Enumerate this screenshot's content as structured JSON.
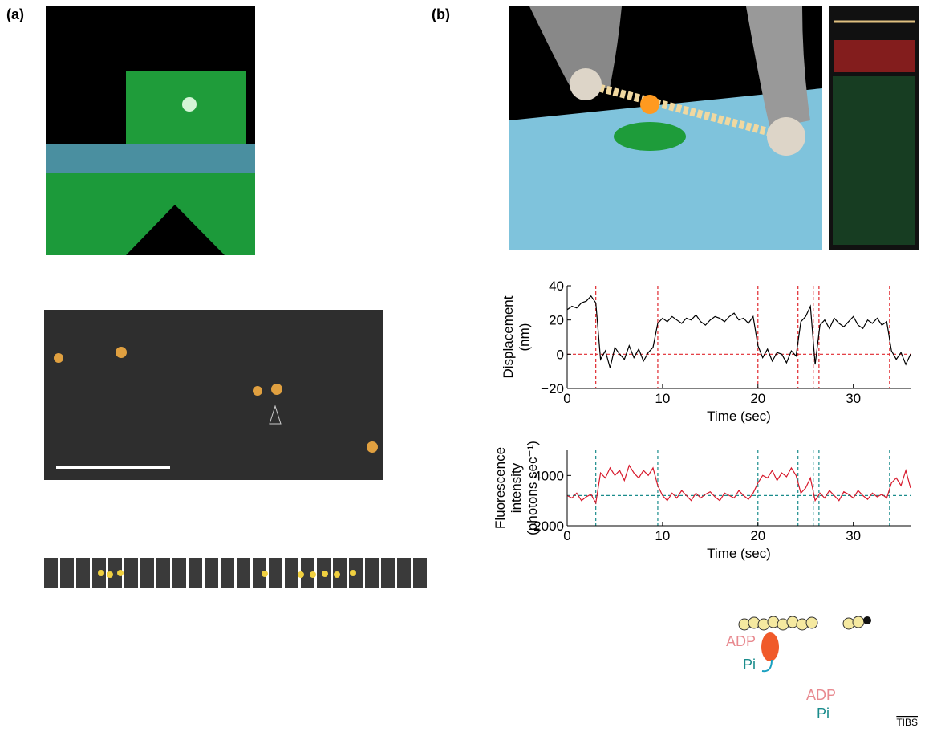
{
  "panel_labels": [
    "(a)",
    "(b)"
  ],
  "chart_data": [
    {
      "type": "line",
      "ylabel": [
        "Displacement",
        "(nm)"
      ],
      "xlabel": "Time (sec)",
      "x": [
        0,
        0.5,
        1,
        1.5,
        2,
        2.5,
        3,
        3.5,
        4,
        4.5,
        5,
        5.5,
        6,
        6.5,
        7,
        7.5,
        8,
        8.5,
        9,
        9.5,
        10,
        10.5,
        11,
        11.5,
        12,
        12.5,
        13,
        13.5,
        14,
        14.5,
        15,
        15.5,
        16,
        16.5,
        17,
        17.5,
        18,
        18.5,
        19,
        19.5,
        20,
        20.5,
        21,
        21.5,
        22,
        22.5,
        23,
        23.5,
        24,
        24.5,
        25,
        25.5,
        26,
        26.5,
        27,
        27.5,
        28,
        28.5,
        29,
        29.5,
        30,
        30.5,
        31,
        31.5,
        32,
        32.5,
        33,
        33.5,
        34,
        34.5,
        35,
        35.5,
        36
      ],
      "series": [
        {
          "color": "#000000",
          "values": [
            26,
            28,
            27,
            30,
            31,
            34,
            30,
            -3,
            2,
            -8,
            4,
            0,
            -3,
            5,
            -2,
            3,
            -4,
            1,
            4,
            18,
            21,
            19,
            22,
            20,
            18,
            21,
            20,
            23,
            19,
            17,
            20,
            22,
            21,
            19,
            22,
            24,
            20,
            21,
            18,
            22,
            5,
            -2,
            3,
            -4,
            1,
            0,
            -5,
            2,
            -1,
            19,
            22,
            28,
            -6,
            17,
            20,
            15,
            21,
            18,
            16,
            19,
            22,
            17,
            15,
            20,
            18,
            21,
            17,
            19,
            2,
            -3,
            1,
            -6,
            0
          ]
        }
      ],
      "xlim": [
        0,
        36
      ],
      "ylim": [
        -20,
        40
      ],
      "xticks": [
        0,
        10,
        20,
        30
      ],
      "yticks": [
        {
          "value": -20,
          "label": "−20"
        },
        0,
        20,
        40
      ],
      "vlines": [
        3,
        9.5,
        20,
        24.2,
        25.8,
        26.4,
        33.8
      ],
      "hline": 0,
      "guide_color": "#e0282e"
    },
    {
      "type": "line",
      "ylabel": [
        "Fluorescence",
        "intensity",
        "(photons sec⁻¹)"
      ],
      "xlabel": "Time (sec)",
      "x": [
        0,
        0.5,
        1,
        1.5,
        2,
        2.5,
        3,
        3.5,
        4,
        4.5,
        5,
        5.5,
        6,
        6.5,
        7,
        7.5,
        8,
        8.5,
        9,
        9.5,
        10,
        10.5,
        11,
        11.5,
        12,
        12.5,
        13,
        13.5,
        14,
        14.5,
        15,
        15.5,
        16,
        16.5,
        17,
        17.5,
        18,
        18.5,
        19,
        19.5,
        20,
        20.5,
        21,
        21.5,
        22,
        22.5,
        23,
        23.5,
        24,
        24.5,
        25,
        25.5,
        26,
        26.5,
        27,
        27.5,
        28,
        28.5,
        29,
        29.5,
        30,
        30.5,
        31,
        31.5,
        32,
        32.5,
        33,
        33.5,
        34,
        34.5,
        35,
        35.5,
        36
      ],
      "series": [
        {
          "color": "#d7192c",
          "values": [
            3200,
            3100,
            3300,
            3000,
            3150,
            3250,
            2900,
            4100,
            3900,
            4300,
            4000,
            4200,
            3800,
            4400,
            4100,
            3900,
            4200,
            4000,
            4300,
            3600,
            3200,
            3000,
            3300,
            3100,
            3400,
            3200,
            3000,
            3300,
            3100,
            3250,
            3350,
            3150,
            3000,
            3300,
            3200,
            3100,
            3400,
            3200,
            3050,
            3300,
            3700,
            4000,
            3900,
            4200,
            3800,
            4100,
            3950,
            4300,
            4000,
            3300,
            3500,
            3900,
            3000,
            3300,
            3100,
            3400,
            3200,
            3000,
            3350,
            3250,
            3100,
            3400,
            3200,
            3050,
            3300,
            3150,
            3250,
            3100,
            3700,
            3900,
            3600,
            4200,
            3500
          ]
        }
      ],
      "xlim": [
        0,
        36
      ],
      "ylim": [
        2000,
        5000
      ],
      "xticks": [
        0,
        10,
        20,
        30
      ],
      "yticks": [
        2000,
        4000
      ],
      "vlines": [
        3,
        9.5,
        20,
        24.2,
        25.8,
        26.4,
        33.8
      ],
      "hline": 3200,
      "guide_color": "#1a8c8c"
    }
  ],
  "diagram": {
    "labels": [
      "ADP",
      "Pi",
      "ADP",
      "Pi"
    ]
  },
  "footer": "TIBS"
}
